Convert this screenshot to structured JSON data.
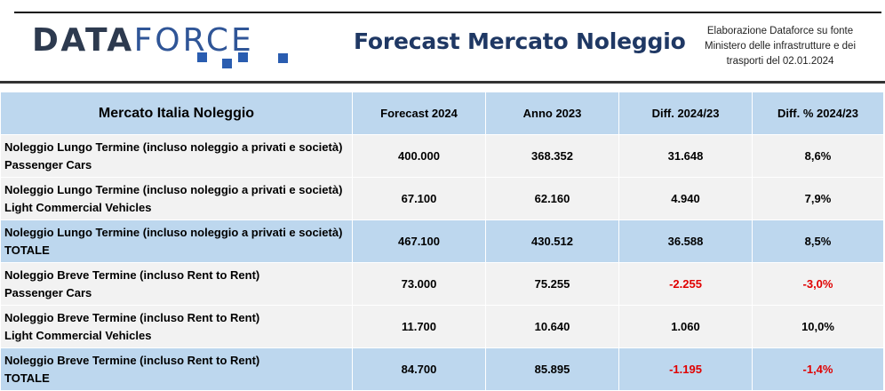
{
  "header": {
    "logo": "DATAFORCE",
    "title": "Forecast Mercato Noleggio",
    "source_lines": [
      "Elaborazione Dataforce su fonte",
      "Ministero delle infrastrutture e dei",
      "trasporti del 02.01.2024"
    ]
  },
  "colors": {
    "header_bg": "#bdd7ee",
    "row_bg": "#f2f2f2",
    "total_bg": "#bdd7ee",
    "negative": "#e00000",
    "title": "#1f3864"
  },
  "table": {
    "columns": [
      "Mercato Italia Noleggio",
      "Forecast 2024",
      "Anno 2023",
      "Diff. 2024/23",
      "Diff. % 2024/23"
    ],
    "rows": [
      {
        "label1": "Noleggio Lungo Termine (incluso noleggio a privati e società)",
        "label2": "Passenger Cars",
        "forecast": "400.000",
        "anno": "368.352",
        "diff": "31.648",
        "diff_pct": "8,6%"
      },
      {
        "label1": "Noleggio Lungo Termine (incluso noleggio a privati e società)",
        "label2": "Light Commercial Vehicles",
        "forecast": "67.100",
        "anno": "62.160",
        "diff": "4.940",
        "diff_pct": "7,9%"
      },
      {
        "label1": "Noleggio Lungo Termine (incluso noleggio a privati e società)",
        "label2": "TOTALE",
        "forecast": "467.100",
        "anno": "430.512",
        "diff": "36.588",
        "diff_pct": "8,5%"
      },
      {
        "label1": "Noleggio Breve Termine (incluso Rent to Rent)",
        "label2": "Passenger Cars",
        "forecast": "73.000",
        "anno": "75.255",
        "diff": "-2.255",
        "diff_pct": "-3,0%"
      },
      {
        "label1": "Noleggio Breve Termine (incluso Rent to Rent)",
        "label2": "Light Commercial Vehicles",
        "forecast": "11.700",
        "anno": "10.640",
        "diff": "1.060",
        "diff_pct": "10,0%"
      },
      {
        "label1": "Noleggio Breve Termine (incluso Rent to Rent)",
        "label2": "TOTALE",
        "forecast": "84.700",
        "anno": "85.895",
        "diff": "-1.195",
        "diff_pct": "-1,4%"
      }
    ]
  }
}
